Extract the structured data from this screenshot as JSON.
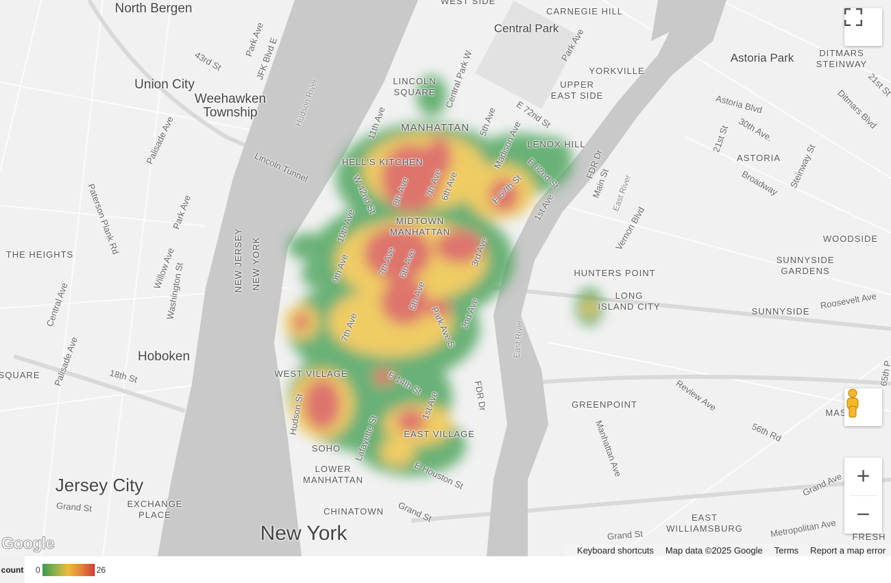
{
  "map": {
    "labels": [
      "North Bergen",
      "Union City",
      "Weehawken\nTownship",
      "Hoboken",
      "Jersey City",
      "New York",
      "Central Park",
      "Astoria Park",
      "CARNEGIE HILL",
      "YORKVILLE",
      "UPPER\nEAST SIDE",
      "LENOX HILL",
      "DITMARS\nSTEINWAY",
      "ASTORIA",
      "LINCOLN\nSQUARE",
      "MANHATTAN",
      "HELL'S KITCHEN",
      "MIDTOWN\nMANHATTAN",
      "THE HEIGHTS",
      "WOODSIDE",
      "SUNNYSIDE\nGARDENS",
      "HUNTERS POINT",
      "LONG\nISLAND CITY",
      "SUNNYSIDE",
      "WEST VILLAGE",
      "EAST VILLAGE",
      "SOHO",
      "LOWER\nMANHATTAN",
      "CHINATOWN",
      "GREENPOINT",
      "EAST\nWILLIAMSBURG",
      "EXCHANGE\nPLACE",
      "SQUARE",
      "NEW JERSEY",
      "NEW YORK",
      "WEST SIDE",
      "MAS",
      "FRESH",
      "Park Ave",
      "43rd St",
      "JFK Blvd E",
      "Hudson River",
      "Lincoln Tunnel",
      "Palisade Ave",
      "Paterson Plank Rd",
      "Park Ave",
      "Willow Ave",
      "Washington St",
      "Central Ave",
      "Palisade Ave",
      "18th St",
      "Grand St",
      "11th Ave",
      "Central Park W",
      "Park Ave",
      "5th Ave",
      "Madison Ave",
      "E 72nd St",
      "FDR Dr",
      "Main St",
      "East River",
      "Vernon Blvd",
      "Astoria Blvd",
      "30th Ave.",
      "21st St",
      "Broadway",
      "Steinway St",
      "21st St",
      "Ditmars Blvd",
      "W 42nd St",
      "8th Ave",
      "7th Ave",
      "6th Ave",
      "10th Ave",
      "9th Ave",
      "7th Ave",
      "6th Ave",
      "5th Ave",
      "3rd Ave",
      "Park Ave S",
      "2nd Ave",
      "E 62nd St",
      "E 57th St",
      "1st Ave",
      "7th Ave",
      "E 14th St",
      "1st Ave",
      "Hudson St",
      "Lafayette St",
      "E Houston St",
      "Grand St",
      "FDR Dr",
      "East River",
      "Roosevelt Ave",
      "Review Ave",
      "56th Rd",
      "Manhattan Ave",
      "Grand Ave",
      "Metropolitan Ave",
      "Grand St",
      "65th P"
    ],
    "attribution": {
      "shortcuts": "Keyboard shortcuts",
      "data": "Map data ©2025 Google",
      "terms": "Terms",
      "report": "Report a map error"
    },
    "logo": "Google",
    "controls": {
      "fullscreen": "fullscreen-icon",
      "pegman": "pegman-icon",
      "zoom_in": "+",
      "zoom_out": "−"
    }
  },
  "legend": {
    "title": "count",
    "min": "0",
    "max": "26",
    "colors": [
      "#3b9a4f",
      "#f0b93a",
      "#d0443a"
    ]
  }
}
